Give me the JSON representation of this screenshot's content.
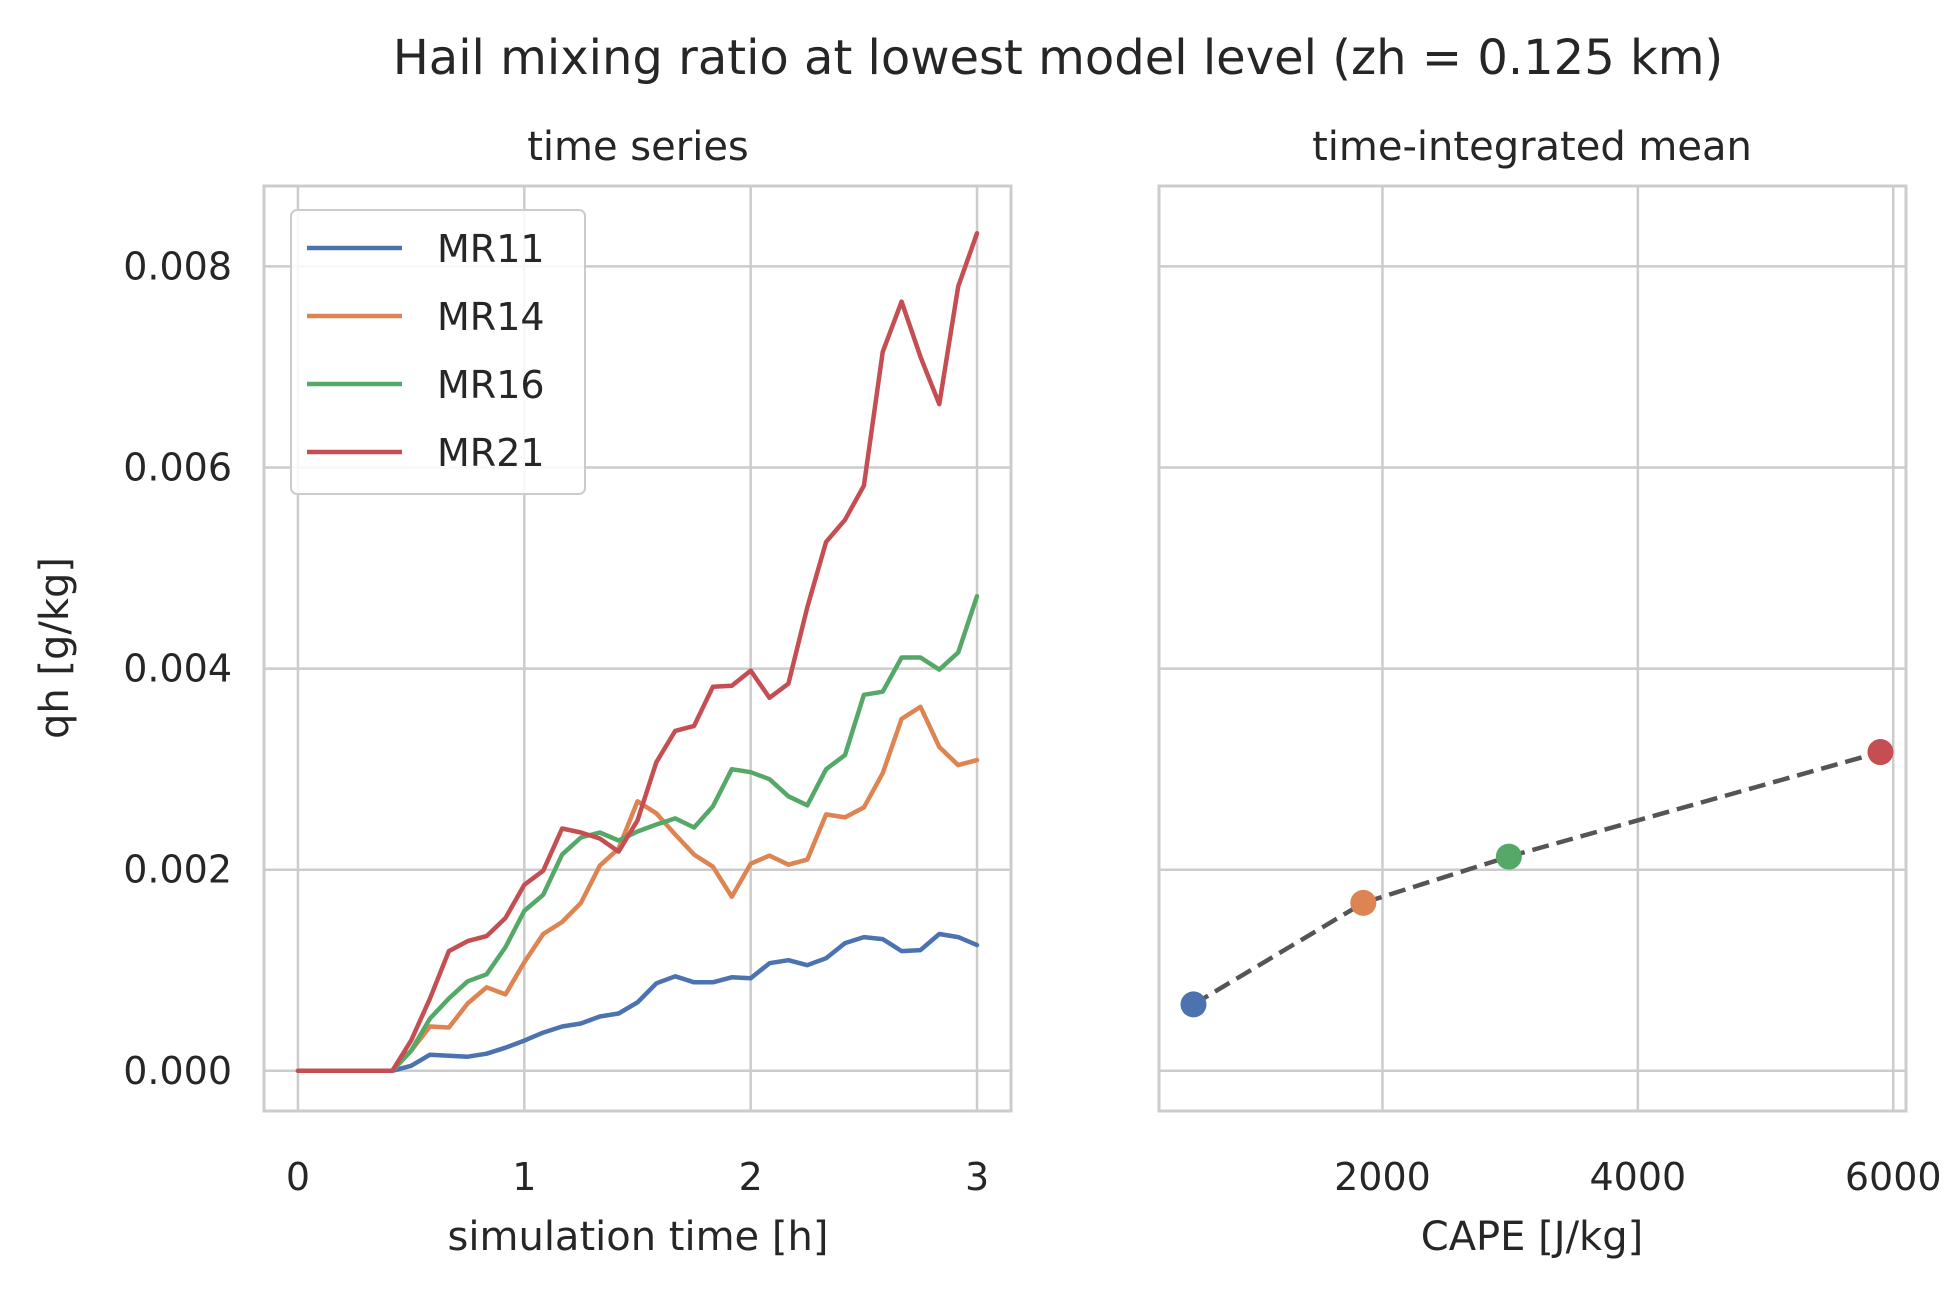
{
  "suptitle": "Hail mixing ratio at lowest model level (zh = 0.125 km)",
  "colors": {
    "MR11": "#4c72b0",
    "MR14": "#dd8452",
    "MR16": "#55a868",
    "MR21": "#c44e52",
    "dashed": "#555555",
    "grid": "#cccccc",
    "text": "#262626"
  },
  "chart_data": [
    {
      "type": "line",
      "title": "time series",
      "xlabel": "simulation time [h]",
      "ylabel": "qh [g/kg]",
      "xlim": [
        -0.15,
        3.15
      ],
      "ylim": [
        -0.0004,
        0.0088
      ],
      "xticks": [
        0,
        1,
        2,
        3
      ],
      "yticks": [
        0.0,
        0.002,
        0.004,
        0.006,
        0.008
      ],
      "ytick_labels": [
        "0.000",
        "0.002",
        "0.004",
        "0.006",
        "0.008"
      ],
      "grid": true,
      "legend": "upper-left",
      "x": [
        0,
        0.0833,
        0.1667,
        0.25,
        0.3333,
        0.4167,
        0.5,
        0.5833,
        0.6667,
        0.75,
        0.8333,
        0.9167,
        1.0,
        1.0833,
        1.1667,
        1.25,
        1.3333,
        1.4167,
        1.5,
        1.5833,
        1.6667,
        1.75,
        1.8333,
        1.9167,
        2.0,
        2.0833,
        2.1667,
        2.25,
        2.3333,
        2.4167,
        2.5,
        2.5833,
        2.6667,
        2.75,
        2.8333,
        2.9167,
        3.0
      ],
      "series": [
        {
          "name": "MR11",
          "values": [
            0,
            0,
            0,
            0,
            0,
            0,
            5e-05,
            0.00016,
            0.00015,
            0.00014,
            0.00017,
            0.00023,
            0.0003,
            0.00038,
            0.00044,
            0.00047,
            0.00054,
            0.00057,
            0.00068,
            0.00087,
            0.00094,
            0.00088,
            0.00088,
            0.00093,
            0.00092,
            0.00107,
            0.0011,
            0.00105,
            0.00112,
            0.00127,
            0.00133,
            0.00131,
            0.00119,
            0.0012,
            0.00136,
            0.00133,
            0.00125
          ]
        },
        {
          "name": "MR14",
          "values": [
            0,
            0,
            0,
            0,
            0,
            0,
            0.0002,
            0.00044,
            0.00043,
            0.00067,
            0.00083,
            0.00076,
            0.00108,
            0.00136,
            0.00148,
            0.00167,
            0.00204,
            0.00221,
            0.00268,
            0.00256,
            0.00235,
            0.00215,
            0.00203,
            0.00173,
            0.00206,
            0.00214,
            0.00205,
            0.0021,
            0.00255,
            0.00252,
            0.00262,
            0.00296,
            0.0035,
            0.00362,
            0.00322,
            0.00304,
            0.00309
          ]
        },
        {
          "name": "MR16",
          "values": [
            0,
            0,
            0,
            0,
            0,
            0,
            0.0002,
            0.00052,
            0.00072,
            0.00089,
            0.00096,
            0.00123,
            0.00159,
            0.00175,
            0.00215,
            0.00232,
            0.00237,
            0.00229,
            0.00238,
            0.00245,
            0.00251,
            0.00242,
            0.00263,
            0.003,
            0.00297,
            0.0029,
            0.00273,
            0.00264,
            0.003,
            0.00314,
            0.00374,
            0.00377,
            0.00411,
            0.00411,
            0.00399,
            0.00416,
            0.00472
          ]
        },
        {
          "name": "MR21",
          "values": [
            0,
            0,
            0,
            0,
            0,
            0,
            0.0003,
            0.00072,
            0.00119,
            0.00129,
            0.00134,
            0.00152,
            0.00185,
            0.00199,
            0.00241,
            0.00237,
            0.00231,
            0.00218,
            0.00249,
            0.00307,
            0.00338,
            0.00343,
            0.00382,
            0.00383,
            0.00398,
            0.00371,
            0.00385,
            0.00461,
            0.00526,
            0.00548,
            0.00582,
            0.00715,
            0.00765,
            0.0071,
            0.00663,
            0.0078,
            0.00833
          ]
        }
      ]
    },
    {
      "type": "scatter",
      "title": "time-integrated mean",
      "xlabel": "CAPE [J/kg]",
      "xlim": [
        250,
        6100
      ],
      "ylim": [
        -0.0004,
        0.0088
      ],
      "xticks": [
        2000,
        4000,
        6000
      ],
      "xtick_labels": [
        "2000",
        "4000",
        "6000"
      ],
      "yticks": [
        0.0,
        0.002,
        0.004,
        0.006,
        0.008
      ],
      "sharey": true,
      "grid": true,
      "connector": "dashed",
      "points": [
        {
          "name": "MR11",
          "x": 520,
          "y": 0.00066
        },
        {
          "name": "MR14",
          "x": 1850,
          "y": 0.00167
        },
        {
          "name": "MR16",
          "x": 2990,
          "y": 0.00213
        },
        {
          "name": "MR21",
          "x": 5900,
          "y": 0.00317
        }
      ]
    }
  ]
}
